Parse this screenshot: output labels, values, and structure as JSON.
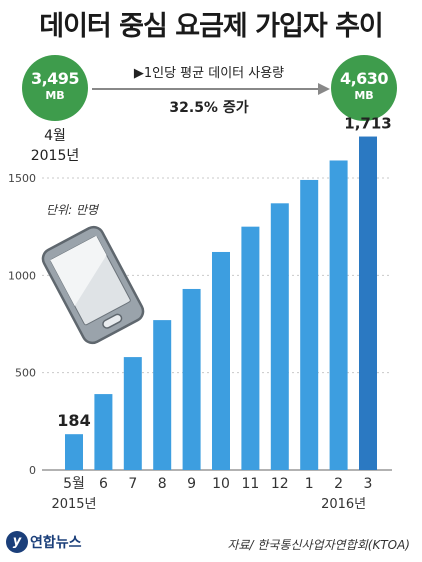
{
  "title": "데이터 중심 요금제 가입자 추이",
  "start": {
    "value": "3,495",
    "unit": "MB",
    "month": "4월",
    "year": "2015년"
  },
  "end": {
    "value": "4,630",
    "unit": "MB"
  },
  "change": {
    "caption": "▶1인당 평균 데이터 사용량",
    "percent": "32.5% 증가"
  },
  "unit_note": "단위: 만명",
  "source": "자료/ 한국통신사업자연합회(KTOA)",
  "logo": {
    "mark": "y",
    "text": "연합뉴스"
  },
  "colors": {
    "bar": "#3d9ee0",
    "bar_last": "#2b79c2",
    "circle": "#3e9c4c"
  },
  "chart_data": {
    "type": "bar",
    "categories": [
      "5월",
      "6",
      "7",
      "8",
      "9",
      "10",
      "11",
      "12",
      "1",
      "2",
      "3"
    ],
    "values": [
      184,
      390,
      580,
      770,
      930,
      1120,
      1250,
      1370,
      1490,
      1590,
      1713
    ],
    "value_labels": [
      "184",
      "",
      "",
      "",
      "",
      "",
      "",
      "",
      "",
      "",
      "1,713"
    ],
    "year_labels": [
      "2015년",
      "",
      "",
      "",
      "",
      "",
      "",
      "",
      "",
      "2016년",
      ""
    ],
    "yticks": [
      0,
      500,
      1000,
      1500
    ],
    "ylim": [
      0,
      1800
    ],
    "grid": true
  }
}
